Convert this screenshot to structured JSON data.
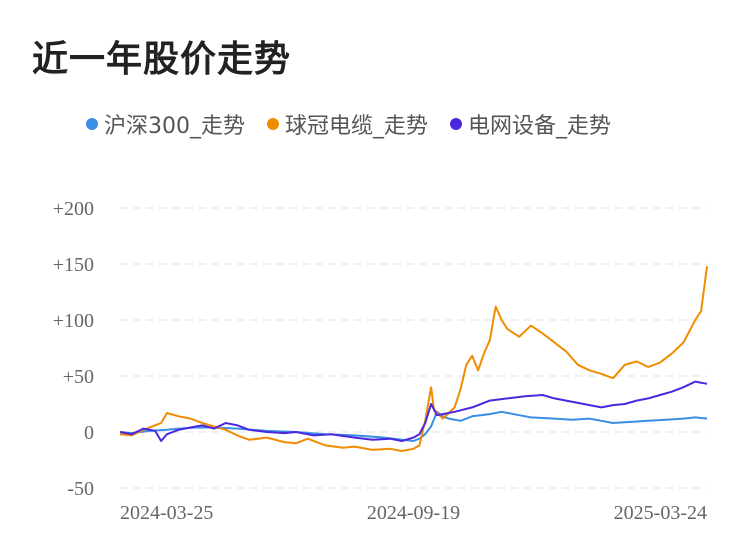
{
  "chart_data": {
    "type": "line",
    "title": "近一年股价走势",
    "y_ticks": [
      {
        "value": 200,
        "label": "+200"
      },
      {
        "value": 150,
        "label": "+150"
      },
      {
        "value": 100,
        "label": "+100"
      },
      {
        "value": 50,
        "label": "+50"
      },
      {
        "value": 0,
        "label": "0"
      },
      {
        "value": -50,
        "label": "-50"
      }
    ],
    "x_ticks": [
      {
        "t": 0.0,
        "label": "2024-03-25"
      },
      {
        "t": 0.5,
        "label": "2024-09-19"
      },
      {
        "t": 1.0,
        "label": "2025-03-24"
      }
    ],
    "ylim": [
      -50,
      200
    ],
    "xlim": [
      "2024-03-25",
      "2025-03-24"
    ],
    "grid": true,
    "legend_position": "top",
    "series": [
      {
        "name": "沪深300_走势",
        "color": "#3a8ee6",
        "points": [
          [
            0,
            0
          ],
          [
            0.02,
            -1
          ],
          [
            0.05,
            1
          ],
          [
            0.08,
            2
          ],
          [
            0.1,
            3
          ],
          [
            0.13,
            4
          ],
          [
            0.16,
            4
          ],
          [
            0.2,
            3
          ],
          [
            0.25,
            1
          ],
          [
            0.3,
            0
          ],
          [
            0.35,
            -2
          ],
          [
            0.4,
            -3
          ],
          [
            0.45,
            -5
          ],
          [
            0.48,
            -7
          ],
          [
            0.5,
            -8
          ],
          [
            0.51,
            -6
          ],
          [
            0.52,
            -2
          ],
          [
            0.53,
            5
          ],
          [
            0.54,
            18
          ],
          [
            0.55,
            14
          ],
          [
            0.56,
            12
          ],
          [
            0.58,
            10
          ],
          [
            0.6,
            14
          ],
          [
            0.63,
            16
          ],
          [
            0.65,
            18
          ],
          [
            0.68,
            15
          ],
          [
            0.7,
            13
          ],
          [
            0.74,
            12
          ],
          [
            0.77,
            11
          ],
          [
            0.8,
            12
          ],
          [
            0.82,
            10
          ],
          [
            0.84,
            8
          ],
          [
            0.87,
            9
          ],
          [
            0.9,
            10
          ],
          [
            0.93,
            11
          ],
          [
            0.96,
            12
          ],
          [
            0.98,
            13
          ],
          [
            1.0,
            12
          ]
        ]
      },
      {
        "name": "球冠电缆_走势",
        "color": "#f08c00",
        "points": [
          [
            0,
            -2
          ],
          [
            0.02,
            -3
          ],
          [
            0.04,
            2
          ],
          [
            0.06,
            6
          ],
          [
            0.07,
            8
          ],
          [
            0.08,
            17
          ],
          [
            0.1,
            14
          ],
          [
            0.12,
            12
          ],
          [
            0.14,
            8
          ],
          [
            0.16,
            5
          ],
          [
            0.18,
            2
          ],
          [
            0.2,
            -3
          ],
          [
            0.22,
            -7
          ],
          [
            0.25,
            -5
          ],
          [
            0.28,
            -9
          ],
          [
            0.3,
            -10
          ],
          [
            0.32,
            -6
          ],
          [
            0.35,
            -12
          ],
          [
            0.38,
            -14
          ],
          [
            0.4,
            -13
          ],
          [
            0.43,
            -16
          ],
          [
            0.46,
            -15
          ],
          [
            0.48,
            -17
          ],
          [
            0.5,
            -15
          ],
          [
            0.51,
            -12
          ],
          [
            0.52,
            10
          ],
          [
            0.53,
            40
          ],
          [
            0.535,
            20
          ],
          [
            0.55,
            12
          ],
          [
            0.57,
            22
          ],
          [
            0.58,
            38
          ],
          [
            0.59,
            60
          ],
          [
            0.6,
            68
          ],
          [
            0.61,
            55
          ],
          [
            0.62,
            70
          ],
          [
            0.63,
            82
          ],
          [
            0.64,
            112
          ],
          [
            0.65,
            100
          ],
          [
            0.66,
            92
          ],
          [
            0.68,
            85
          ],
          [
            0.7,
            95
          ],
          [
            0.72,
            88
          ],
          [
            0.74,
            80
          ],
          [
            0.76,
            72
          ],
          [
            0.78,
            60
          ],
          [
            0.8,
            55
          ],
          [
            0.82,
            52
          ],
          [
            0.84,
            48
          ],
          [
            0.86,
            60
          ],
          [
            0.88,
            63
          ],
          [
            0.9,
            58
          ],
          [
            0.92,
            62
          ],
          [
            0.94,
            70
          ],
          [
            0.96,
            80
          ],
          [
            0.97,
            90
          ],
          [
            0.98,
            100
          ],
          [
            0.99,
            108
          ],
          [
            1.0,
            148
          ]
        ]
      },
      {
        "name": "电网设备_走势",
        "color": "#4b27e0",
        "points": [
          [
            0,
            0
          ],
          [
            0.02,
            -2
          ],
          [
            0.04,
            3
          ],
          [
            0.06,
            1
          ],
          [
            0.07,
            -8
          ],
          [
            0.08,
            -2
          ],
          [
            0.1,
            2
          ],
          [
            0.12,
            4
          ],
          [
            0.14,
            6
          ],
          [
            0.16,
            3
          ],
          [
            0.18,
            8
          ],
          [
            0.2,
            6
          ],
          [
            0.22,
            2
          ],
          [
            0.25,
            0
          ],
          [
            0.28,
            -1
          ],
          [
            0.3,
            0
          ],
          [
            0.33,
            -3
          ],
          [
            0.36,
            -2
          ],
          [
            0.4,
            -5
          ],
          [
            0.43,
            -7
          ],
          [
            0.46,
            -6
          ],
          [
            0.48,
            -8
          ],
          [
            0.5,
            -5
          ],
          [
            0.51,
            -2
          ],
          [
            0.52,
            8
          ],
          [
            0.53,
            25
          ],
          [
            0.54,
            15
          ],
          [
            0.55,
            16
          ],
          [
            0.57,
            18
          ],
          [
            0.6,
            22
          ],
          [
            0.63,
            28
          ],
          [
            0.66,
            30
          ],
          [
            0.69,
            32
          ],
          [
            0.72,
            33
          ],
          [
            0.74,
            30
          ],
          [
            0.76,
            28
          ],
          [
            0.78,
            26
          ],
          [
            0.8,
            24
          ],
          [
            0.82,
            22
          ],
          [
            0.84,
            24
          ],
          [
            0.86,
            25
          ],
          [
            0.88,
            28
          ],
          [
            0.9,
            30
          ],
          [
            0.92,
            33
          ],
          [
            0.94,
            36
          ],
          [
            0.96,
            40
          ],
          [
            0.98,
            45
          ],
          [
            1.0,
            43
          ]
        ]
      }
    ]
  }
}
